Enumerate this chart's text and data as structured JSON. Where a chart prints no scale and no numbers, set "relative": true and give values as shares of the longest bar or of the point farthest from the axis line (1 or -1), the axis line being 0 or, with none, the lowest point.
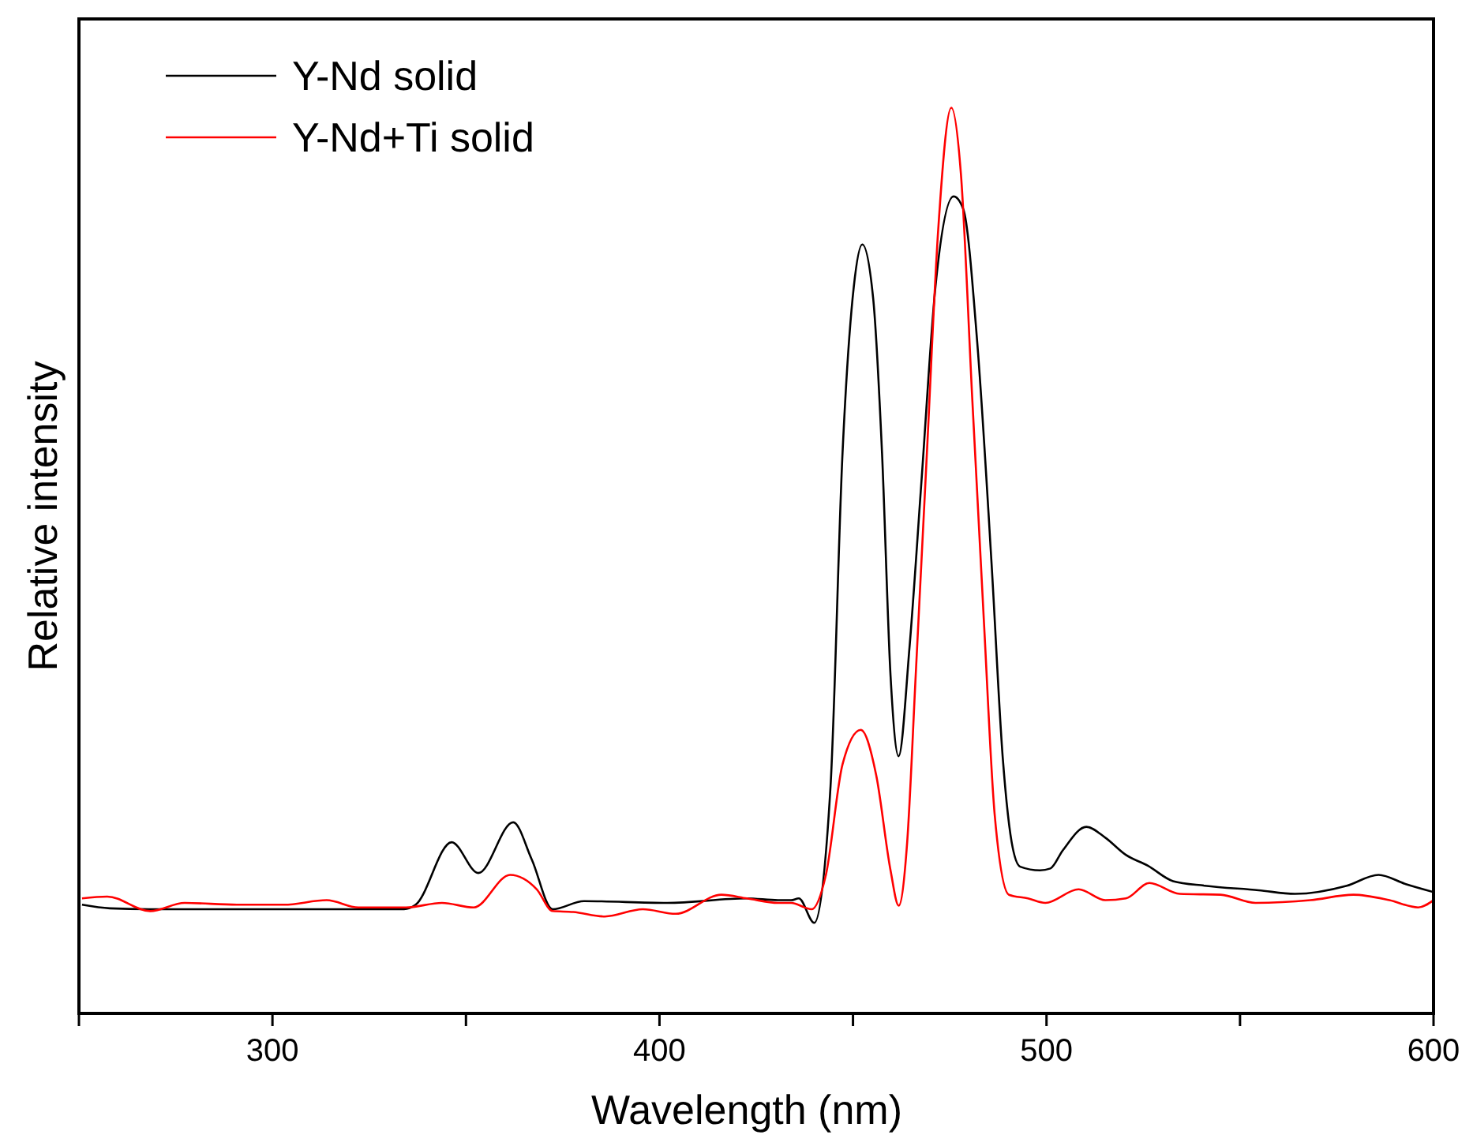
{
  "chart_data": {
    "type": "line",
    "xlabel": "Wavelength (nm)",
    "ylabel": "Relative intensity",
    "relative": true,
    "xlim": [
      250,
      600
    ],
    "xticks": [
      {
        "value": 250,
        "label": null
      },
      300,
      {
        "value": 350,
        "label": null
      },
      400,
      {
        "value": 450,
        "label": null
      },
      500,
      {
        "value": 550,
        "label": null
      },
      600
    ],
    "legend": "top left",
    "grid": false,
    "marker": "none",
    "line_style": "solid",
    "series": [
      {
        "name": "Y-Nd solid",
        "color": "#000000",
        "x": [
          250.8,
          258,
          268,
          280,
          300,
          320,
          334,
          337,
          346.3,
          353.2,
          362.2,
          367,
          372.4,
          380.5,
          402,
          422.6,
          430.6,
          434,
          436,
          440,
          444.2,
          447.3,
          450.2,
          452.4,
          455.2,
          457.5,
          459.7,
          461.8,
          464.6,
          467.7,
          471.3,
          476.0,
          478.5,
          482.1,
          485.8,
          488.7,
          491.0,
          493.2,
          498.3,
          501.0,
          504.2,
          510.3,
          515.2,
          520.5,
          526.2,
          532.7,
          540.9,
          554.8,
          564.2,
          577.6,
          585.8,
          592.7,
          600
        ],
        "values": [
          0.12,
          0.116,
          0.115,
          0.115,
          0.115,
          0.115,
          0.115,
          0.12,
          0.189,
          0.155,
          0.211,
          0.17,
          0.115,
          0.124,
          0.122,
          0.127,
          0.125,
          0.125,
          0.127,
          0.1,
          0.251,
          0.619,
          0.802,
          0.849,
          0.79,
          0.619,
          0.373,
          0.284,
          0.404,
          0.588,
          0.802,
          0.902,
          0.888,
          0.741,
          0.497,
          0.282,
          0.189,
          0.162,
          0.158,
          0.16,
          0.18,
          0.206,
          0.194,
          0.175,
          0.163,
          0.146,
          0.141,
          0.136,
          0.132,
          0.141,
          0.153,
          0.143,
          0.134
        ]
      },
      {
        "name": "Y-Nd+Ti solid",
        "color": "#ff0000",
        "x": [
          250.8,
          257.3,
          268.4,
          277.3,
          290.8,
          303,
          314,
          322.2,
          334.5,
          343.8,
          352,
          361.4,
          368.3,
          372.4,
          377.7,
          385.9,
          395.7,
          404.2,
          416,
          422.6,
          430.7,
          434,
          439.3,
          443,
          447.3,
          452,
          456,
          459.7,
          461.8,
          464,
          466.2,
          469.1,
          472,
          475.4,
          477.9,
          480.8,
          483.8,
          486.6,
          490.3,
          495.2,
          499.7,
          508.3,
          515.2,
          520.5,
          526.6,
          534.4,
          545,
          554,
          568.2,
          579.3,
          588.6,
          596,
          600
        ],
        "values": [
          0.127,
          0.129,
          0.113,
          0.122,
          0.12,
          0.12,
          0.125,
          0.117,
          0.117,
          0.122,
          0.117,
          0.153,
          0.137,
          0.113,
          0.112,
          0.107,
          0.115,
          0.11,
          0.131,
          0.127,
          0.122,
          0.122,
          0.115,
          0.153,
          0.275,
          0.313,
          0.263,
          0.158,
          0.119,
          0.189,
          0.373,
          0.619,
          0.864,
          1.0,
          0.926,
          0.68,
          0.435,
          0.22,
          0.131,
          0.127,
          0.122,
          0.137,
          0.125,
          0.127,
          0.144,
          0.132,
          0.131,
          0.122,
          0.125,
          0.131,
          0.125,
          0.117,
          0.125
        ]
      }
    ]
  }
}
